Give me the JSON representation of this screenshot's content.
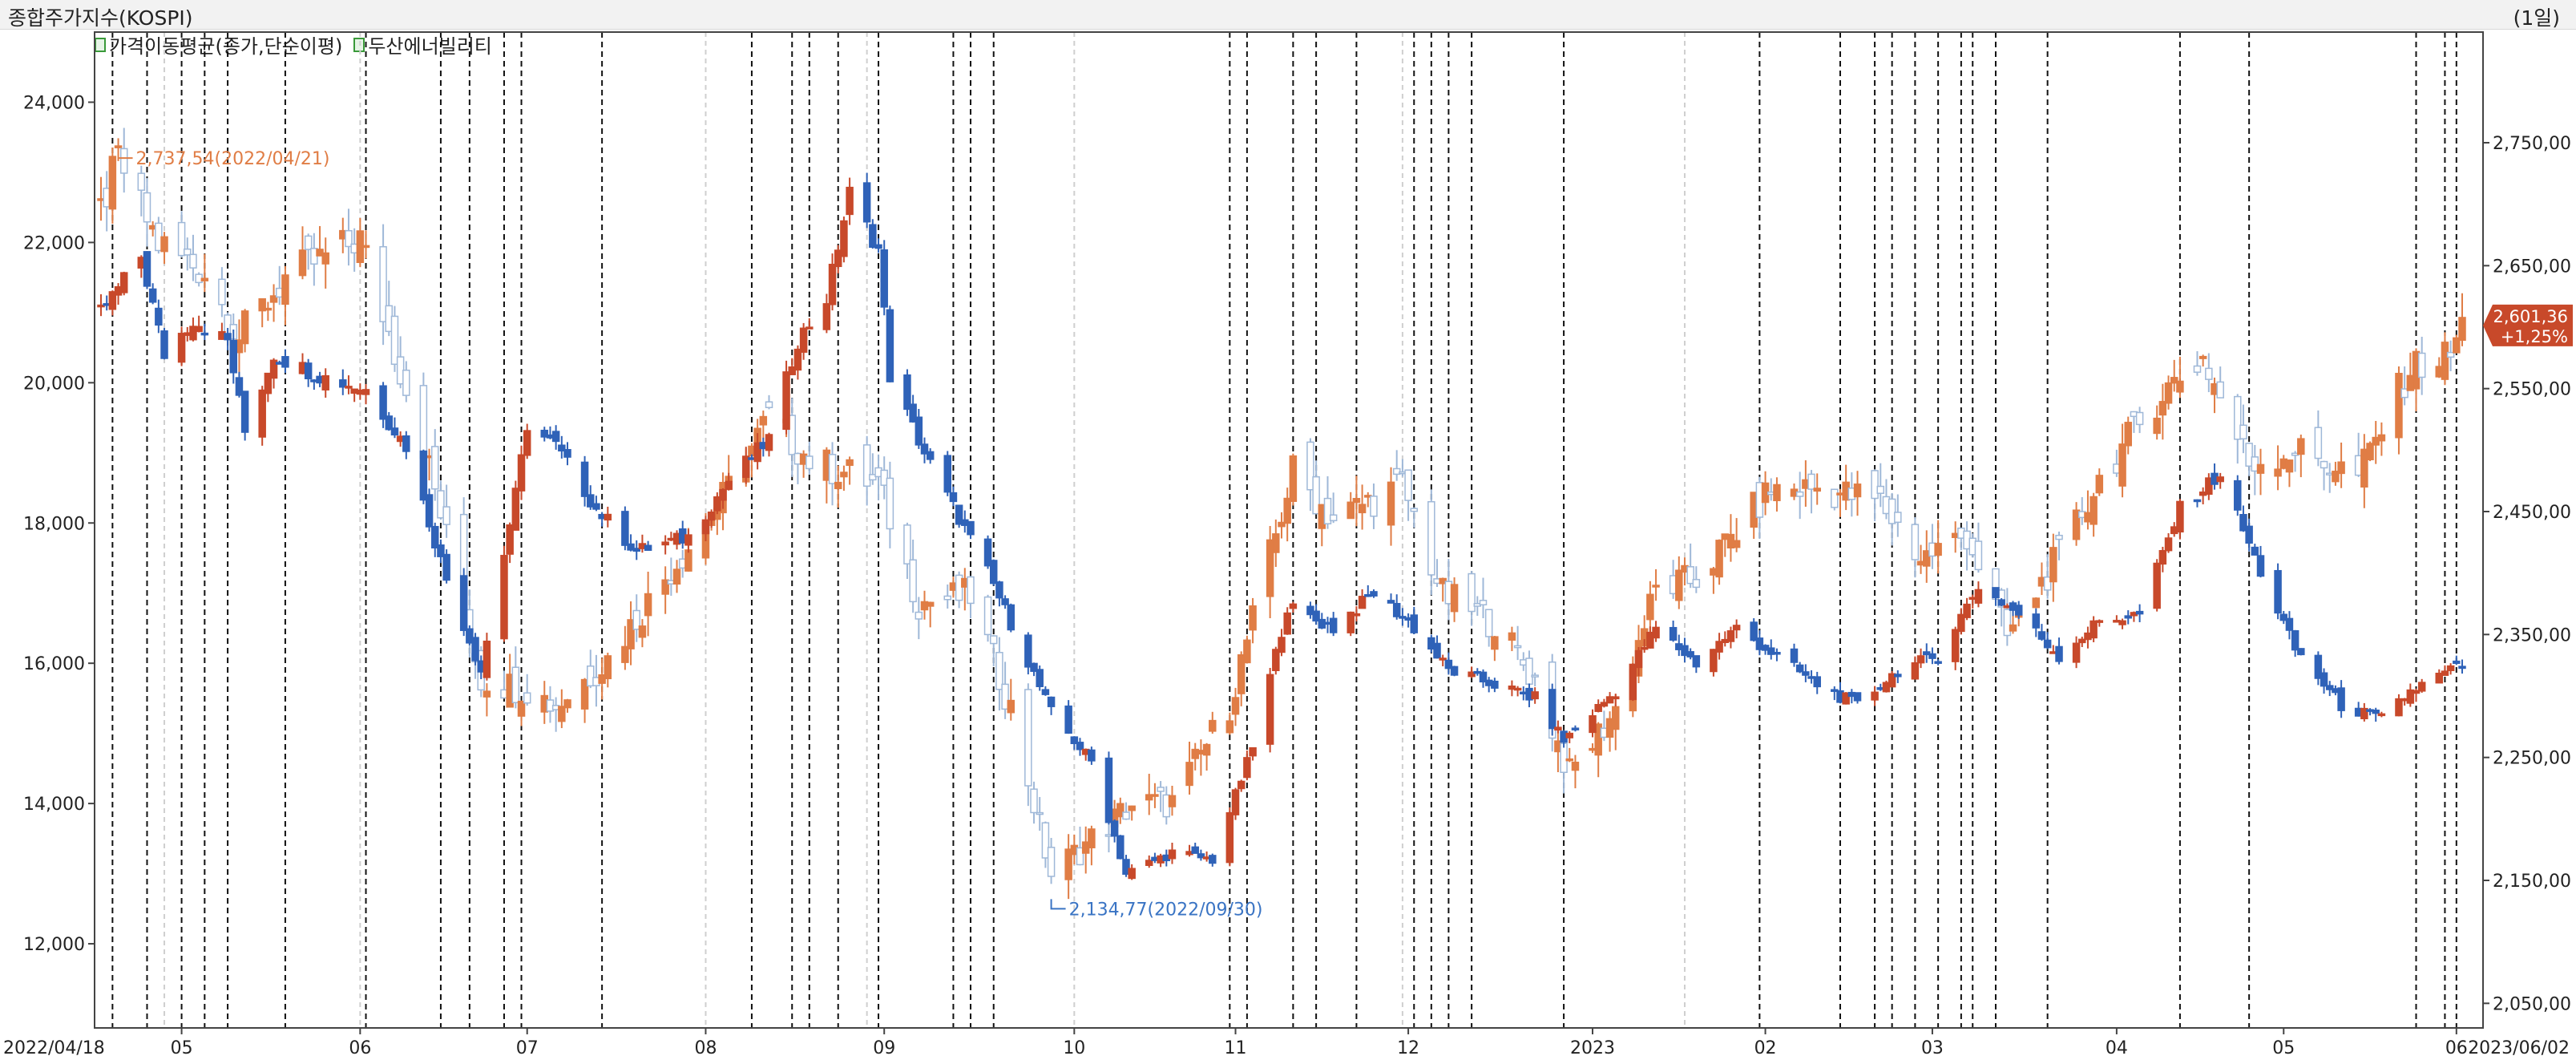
{
  "header": {
    "title": "종합주가지수(KOSPI)",
    "period": "(1일)"
  },
  "legend": {
    "items": [
      {
        "label": "가격이동평균(종가,단순이평)",
        "icon": "checkbox-icon"
      },
      {
        "label": "두산에너빌리티",
        "icon": "checkbox-icon"
      }
    ]
  },
  "colors": {
    "kospi_up": "#e07d45",
    "kospi_down": "#9fb8d8",
    "stock_up": "#c8492a",
    "stock_down": "#2f62b8",
    "vline": "#111111",
    "vline_light": "#cfcfcf"
  },
  "chart_data": {
    "type": "candlestick",
    "x_range": [
      "2022/04/18",
      "2023/06/02"
    ],
    "x_ticks": [
      {
        "label": "2022/04/18",
        "date": "2022-04-18"
      },
      {
        "label": "05",
        "date": "2022-05-02"
      },
      {
        "label": "06",
        "date": "2022-06-02"
      },
      {
        "label": "07",
        "date": "2022-07-01"
      },
      {
        "label": "08",
        "date": "2022-08-01"
      },
      {
        "label": "09",
        "date": "2022-09-01"
      },
      {
        "label": "10",
        "date": "2022-10-04"
      },
      {
        "label": "11",
        "date": "2022-11-01"
      },
      {
        "label": "12",
        "date": "2022-12-01"
      },
      {
        "label": "2023",
        "date": "2023-01-02"
      },
      {
        "label": "02",
        "date": "2023-02-01"
      },
      {
        "label": "03",
        "date": "2023-03-02"
      },
      {
        "label": "04",
        "date": "2023-04-03"
      },
      {
        "label": "05",
        "date": "2023-05-02"
      },
      {
        "label": "06",
        "date": "2023-06-01"
      },
      {
        "label": "2023/06/02",
        "date": "2023-06-02"
      }
    ],
    "left_axis": {
      "series": "두산에너빌리티",
      "range": [
        10800,
        25000
      ],
      "ticks": [
        {
          "label": "12,000",
          "value": 12000
        },
        {
          "label": "14,000",
          "value": 14000
        },
        {
          "label": "16,000",
          "value": 16000
        },
        {
          "label": "18,000",
          "value": 18000
        },
        {
          "label": "20,000",
          "value": 20000
        },
        {
          "label": "22,000",
          "value": 22000
        },
        {
          "label": "24,000",
          "value": 24000
        }
      ]
    },
    "right_axis": {
      "series": "종합주가지수(KOSPI)",
      "range": [
        2030,
        2840
      ],
      "ticks": [
        {
          "label": "2,050,00",
          "value": 2050
        },
        {
          "label": "2,150,00",
          "value": 2150
        },
        {
          "label": "2,250,00",
          "value": 2250
        },
        {
          "label": "2,350,00",
          "value": 2350
        },
        {
          "label": "2,450,00",
          "value": 2450
        },
        {
          "label": "2,550,00",
          "value": 2550
        },
        {
          "label": "2,650,00",
          "value": 2650
        },
        {
          "label": "2,750,00",
          "value": 2750
        }
      ]
    },
    "series": [
      {
        "name": "종합주가지수(KOSPI)",
        "axis": "right",
        "anchors": [
          {
            "date": "2022-04-18",
            "close": 2694
          },
          {
            "date": "2022-04-21",
            "close": 2737
          },
          {
            "date": "2022-04-28",
            "close": 2668
          },
          {
            "date": "2022-05-06",
            "close": 2645
          },
          {
            "date": "2022-05-12",
            "close": 2592
          },
          {
            "date": "2022-05-20",
            "close": 2640
          },
          {
            "date": "2022-06-02",
            "close": 2672
          },
          {
            "date": "2022-06-13",
            "close": 2505
          },
          {
            "date": "2022-06-23",
            "close": 2314
          },
          {
            "date": "2022-07-01",
            "close": 2306
          },
          {
            "date": "2022-07-06",
            "close": 2292
          },
          {
            "date": "2022-07-15",
            "close": 2330
          },
          {
            "date": "2022-07-26",
            "close": 2403
          },
          {
            "date": "2022-08-04",
            "close": 2461
          },
          {
            "date": "2022-08-12",
            "close": 2527
          },
          {
            "date": "2022-08-19",
            "close": 2492
          },
          {
            "date": "2022-08-31",
            "close": 2472
          },
          {
            "date": "2022-09-07",
            "close": 2376
          },
          {
            "date": "2022-09-16",
            "close": 2382
          },
          {
            "date": "2022-09-23",
            "close": 2290
          },
          {
            "date": "2022-09-30",
            "close": 2155
          },
          {
            "date": "2022-10-14",
            "close": 2212
          },
          {
            "date": "2022-10-21",
            "close": 2213
          },
          {
            "date": "2022-10-31",
            "close": 2293
          },
          {
            "date": "2022-11-11",
            "close": 2483
          },
          {
            "date": "2022-11-18",
            "close": 2444
          },
          {
            "date": "2022-11-30",
            "close": 2472
          },
          {
            "date": "2022-12-07",
            "close": 2382
          },
          {
            "date": "2022-12-16",
            "close": 2360
          },
          {
            "date": "2022-12-23",
            "close": 2313
          },
          {
            "date": "2022-12-29",
            "close": 2236
          },
          {
            "date": "2023-01-06",
            "close": 2289
          },
          {
            "date": "2023-01-13",
            "close": 2386
          },
          {
            "date": "2023-01-20",
            "close": 2395
          },
          {
            "date": "2023-02-02",
            "close": 2468
          },
          {
            "date": "2023-02-10",
            "close": 2469
          },
          {
            "date": "2023-02-21",
            "close": 2458
          },
          {
            "date": "2023-02-28",
            "close": 2412
          },
          {
            "date": "2023-03-08",
            "close": 2431
          },
          {
            "date": "2023-03-15",
            "close": 2348
          },
          {
            "date": "2023-03-24",
            "close": 2414
          },
          {
            "date": "2023-03-31",
            "close": 2476
          },
          {
            "date": "2023-04-11",
            "close": 2547
          },
          {
            "date": "2023-04-18",
            "close": 2575
          },
          {
            "date": "2023-04-26",
            "close": 2489
          },
          {
            "date": "2023-05-04",
            "close": 2500
          },
          {
            "date": "2023-05-15",
            "close": 2479
          },
          {
            "date": "2023-05-24",
            "close": 2567
          },
          {
            "date": "2023-05-31",
            "close": 2577
          },
          {
            "date": "2023-06-02",
            "close": 2601.36
          }
        ]
      },
      {
        "name": "두산에너빌리티",
        "axis": "left",
        "anchors": [
          {
            "date": "2022-04-18",
            "close": 21000
          },
          {
            "date": "2022-04-25",
            "close": 21800
          },
          {
            "date": "2022-04-29",
            "close": 20400
          },
          {
            "date": "2022-05-04",
            "close": 20900
          },
          {
            "date": "2022-05-10",
            "close": 20600
          },
          {
            "date": "2022-05-13",
            "close": 19300
          },
          {
            "date": "2022-05-18",
            "close": 20400
          },
          {
            "date": "2022-05-26",
            "close": 20100
          },
          {
            "date": "2022-06-03",
            "close": 19900
          },
          {
            "date": "2022-06-10",
            "close": 19100
          },
          {
            "date": "2022-06-17",
            "close": 17200
          },
          {
            "date": "2022-06-23",
            "close": 15900
          },
          {
            "date": "2022-06-29",
            "close": 18400
          },
          {
            "date": "2022-07-01",
            "close": 19400
          },
          {
            "date": "2022-07-06",
            "close": 19100
          },
          {
            "date": "2022-07-13",
            "close": 18200
          },
          {
            "date": "2022-07-20",
            "close": 17600
          },
          {
            "date": "2022-07-29",
            "close": 17800
          },
          {
            "date": "2022-08-05",
            "close": 18600
          },
          {
            "date": "2022-08-12",
            "close": 19200
          },
          {
            "date": "2022-08-17",
            "close": 20600
          },
          {
            "date": "2022-08-22",
            "close": 21200
          },
          {
            "date": "2022-08-26",
            "close": 22700
          },
          {
            "date": "2022-08-31",
            "close": 21900
          },
          {
            "date": "2022-09-02",
            "close": 20100
          },
          {
            "date": "2022-09-08",
            "close": 19000
          },
          {
            "date": "2022-09-19",
            "close": 17300
          },
          {
            "date": "2022-09-30",
            "close": 15300
          },
          {
            "date": "2022-10-07",
            "close": 14600
          },
          {
            "date": "2022-10-13",
            "close": 13000
          },
          {
            "date": "2022-10-21",
            "close": 13300
          },
          {
            "date": "2022-10-28",
            "close": 13200
          },
          {
            "date": "2022-11-04",
            "close": 14800
          },
          {
            "date": "2022-11-10",
            "close": 16800
          },
          {
            "date": "2022-11-18",
            "close": 16500
          },
          {
            "date": "2022-11-25",
            "close": 17000
          },
          {
            "date": "2022-12-01",
            "close": 16600
          },
          {
            "date": "2022-12-08",
            "close": 15900
          },
          {
            "date": "2022-12-16",
            "close": 15700
          },
          {
            "date": "2022-12-23",
            "close": 15500
          },
          {
            "date": "2022-12-28",
            "close": 14900
          },
          {
            "date": "2023-01-06",
            "close": 15600
          },
          {
            "date": "2023-01-13",
            "close": 16500
          },
          {
            "date": "2023-01-20",
            "close": 16000
          },
          {
            "date": "2023-01-27",
            "close": 16500
          },
          {
            "date": "2023-02-03",
            "close": 16100
          },
          {
            "date": "2023-02-10",
            "close": 15700
          },
          {
            "date": "2023-02-17",
            "close": 15400
          },
          {
            "date": "2023-02-24",
            "close": 15900
          },
          {
            "date": "2023-03-03",
            "close": 16100
          },
          {
            "date": "2023-03-10",
            "close": 17100
          },
          {
            "date": "2023-03-17",
            "close": 16700
          },
          {
            "date": "2023-03-24",
            "close": 16100
          },
          {
            "date": "2023-03-31",
            "close": 16600
          },
          {
            "date": "2023-04-07",
            "close": 16700
          },
          {
            "date": "2023-04-14",
            "close": 18200
          },
          {
            "date": "2023-04-21",
            "close": 18700
          },
          {
            "date": "2023-04-28",
            "close": 17300
          },
          {
            "date": "2023-05-04",
            "close": 16200
          },
          {
            "date": "2023-05-12",
            "close": 15400
          },
          {
            "date": "2023-05-19",
            "close": 15200
          },
          {
            "date": "2023-05-24",
            "close": 15600
          },
          {
            "date": "2023-05-31",
            "close": 15900
          },
          {
            "date": "2023-06-02",
            "close": 15950
          }
        ]
      }
    ],
    "annotations": [
      {
        "text": "2,737,54(2022/04/21)",
        "date": "2022-04-21",
        "value": 2737.54,
        "axis": "right",
        "kind": "high"
      },
      {
        "text": "2,134,77(2022/09/30)",
        "date": "2022-09-30",
        "value": 2134.77,
        "axis": "right",
        "kind": "low"
      }
    ],
    "last_value_badge": {
      "price": "2,601,36",
      "change": "+1,25%"
    },
    "vertical_lines": [
      "2022-04-20",
      "2022-04-26",
      "2022-05-02",
      "2022-05-06",
      "2022-05-10",
      "2022-05-20",
      "2022-06-03",
      "2022-06-16",
      "2022-06-21",
      "2022-06-27",
      "2022-06-30",
      "2022-07-14",
      "2022-08-09",
      "2022-08-16",
      "2022-08-19",
      "2022-08-24",
      "2022-08-31",
      "2022-09-13",
      "2022-09-16",
      "2022-09-20",
      "2022-10-31",
      "2022-11-03",
      "2022-11-11",
      "2022-11-15",
      "2022-11-22",
      "2022-12-02",
      "2022-12-05",
      "2022-12-08",
      "2022-12-12",
      "2022-12-28",
      "2023-01-31",
      "2023-02-14",
      "2023-02-20",
      "2023-02-23",
      "2023-02-27",
      "2023-03-03",
      "2023-03-07",
      "2023-03-09",
      "2023-03-13",
      "2023-03-22",
      "2023-04-14",
      "2023-04-26",
      "2023-05-25",
      "2023-05-30",
      "2023-06-01"
    ],
    "vertical_lines_light": [
      "2022-04-29",
      "2022-06-02",
      "2022-08-01",
      "2022-08-29",
      "2022-10-04",
      "2022-11-30",
      "2023-01-18"
    ]
  }
}
